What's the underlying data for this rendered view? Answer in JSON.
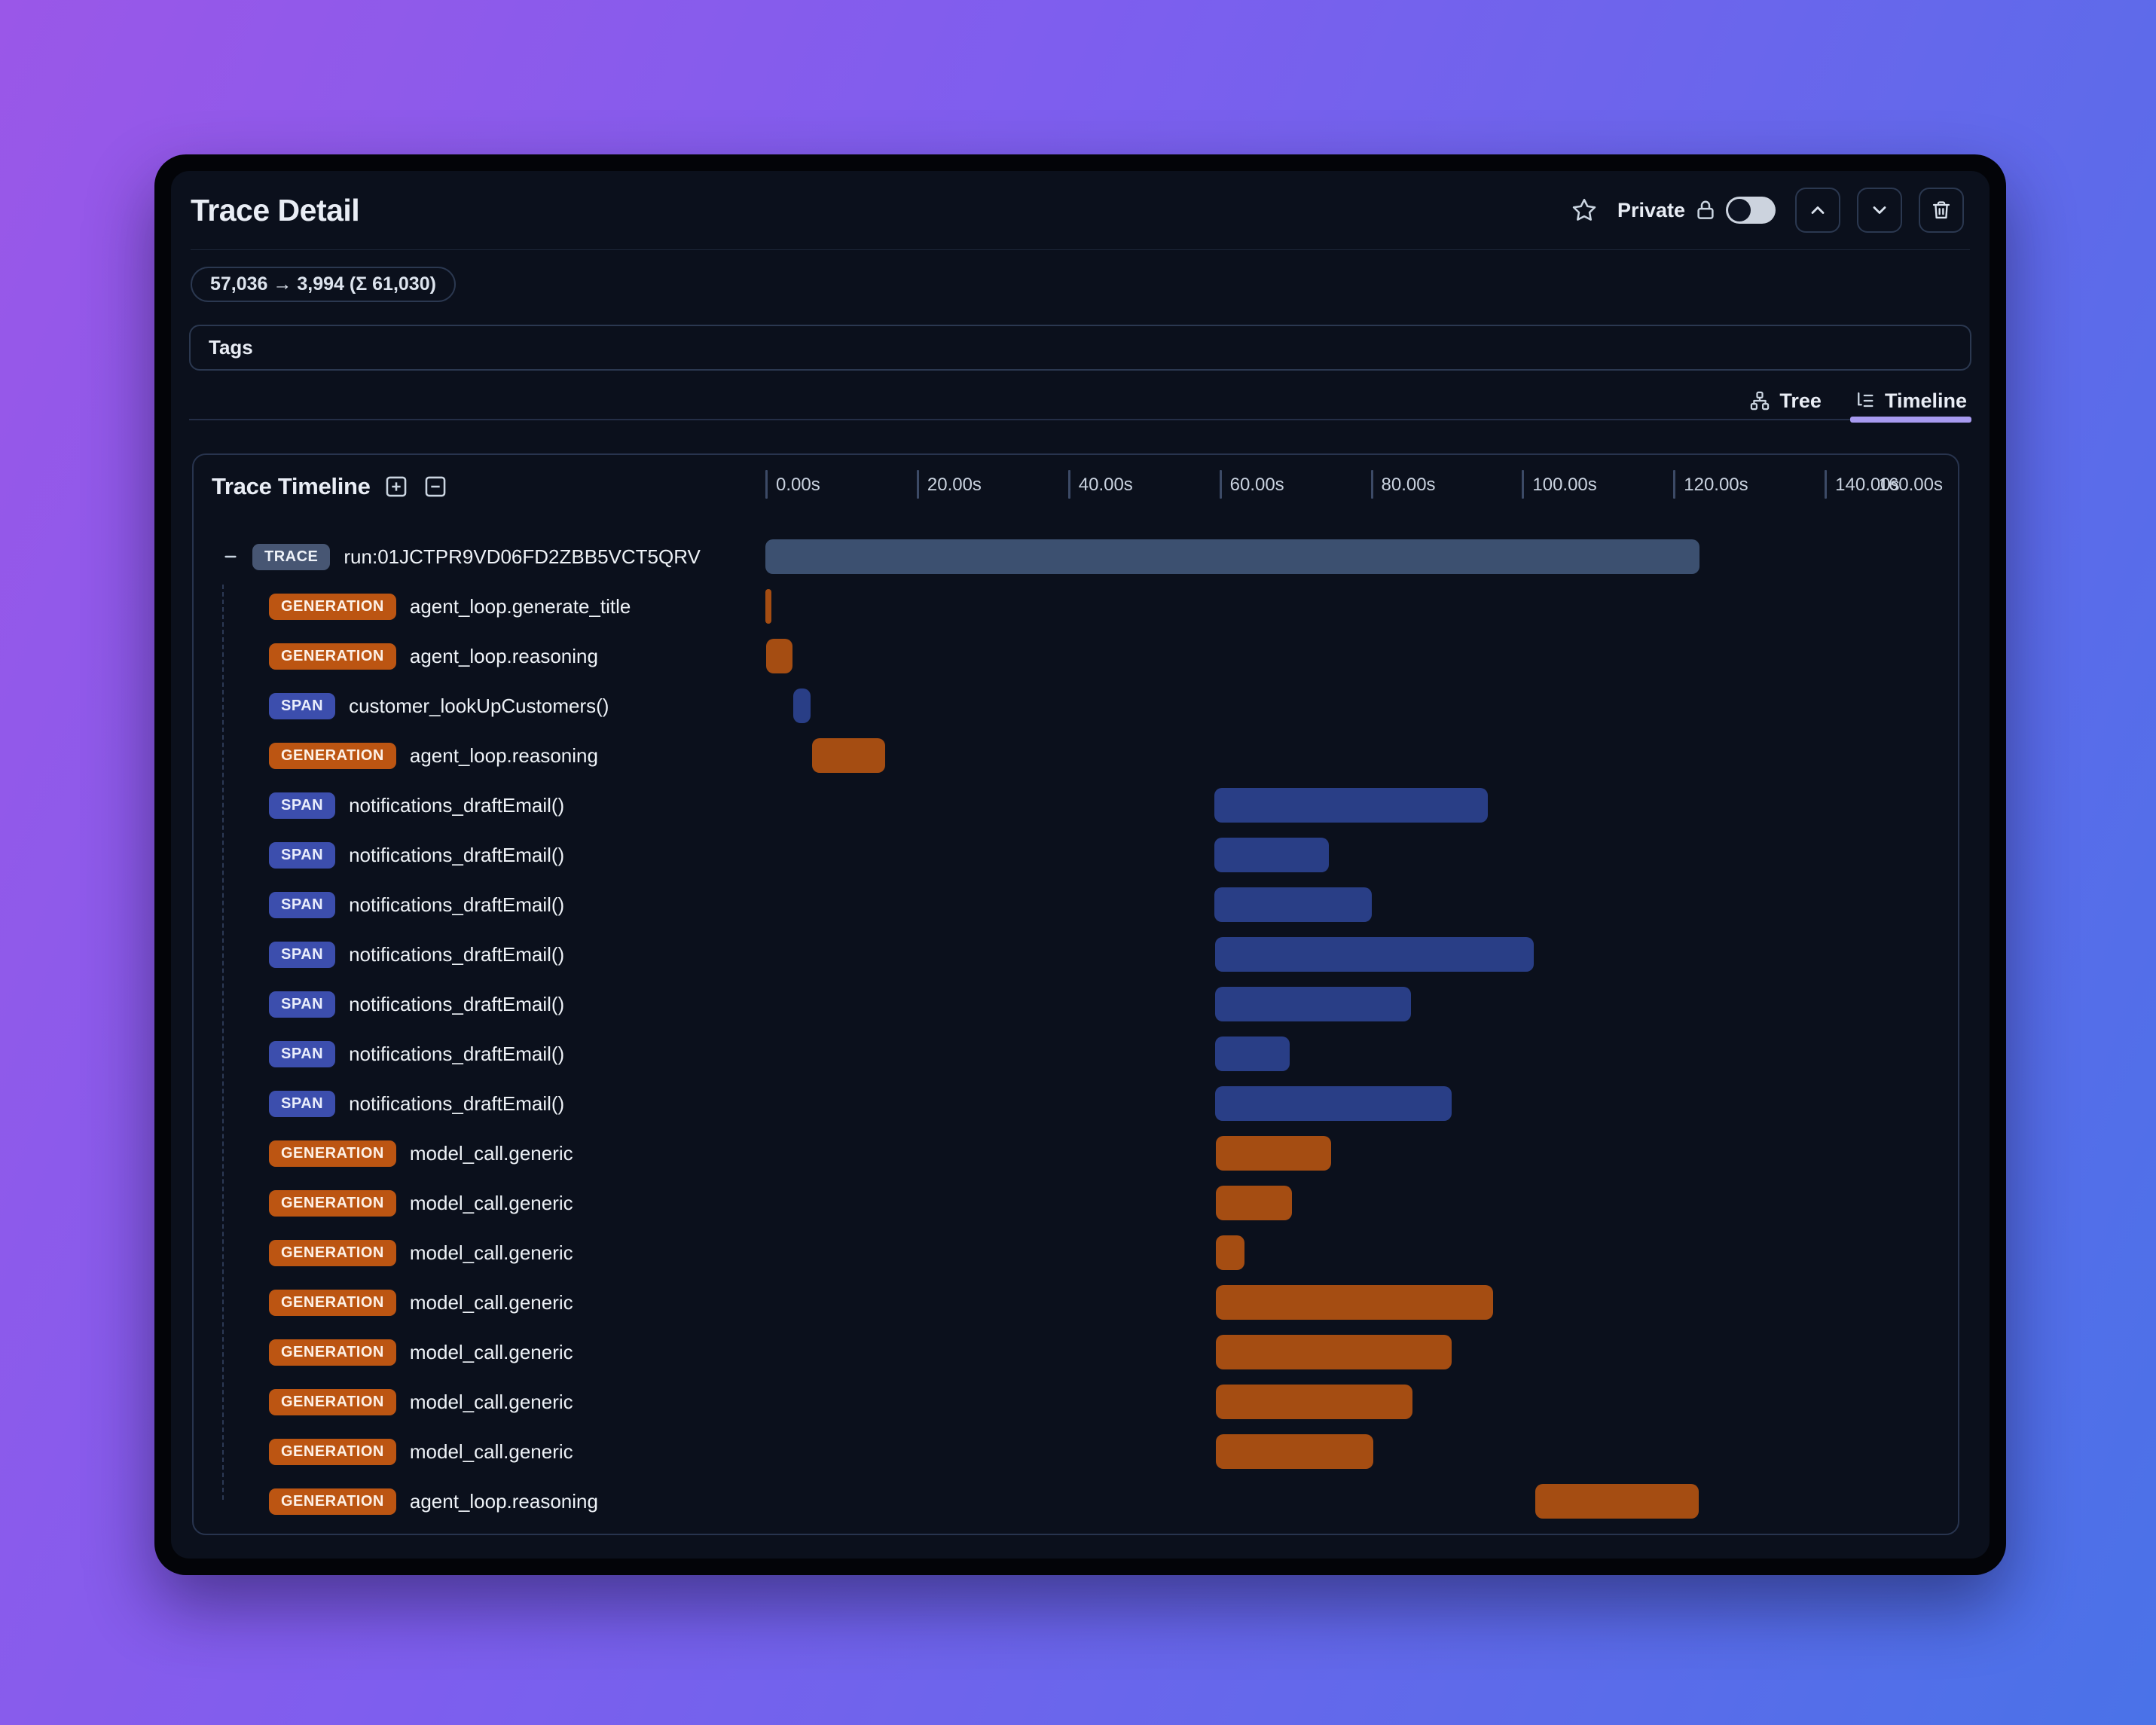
{
  "window": {
    "title": "Trace Detail",
    "usage_badge": "57,036 → 3,994 (Σ 61,030)",
    "tags_label": "Tags",
    "privacy_label": "Private",
    "header_icons": [
      "star-icon",
      "lock-icon",
      "toggle-switch",
      "chevron-up-icon",
      "chevron-down-icon",
      "trash-icon"
    ]
  },
  "tabs": [
    {
      "label": "Tree",
      "icon": "tree-hierarchy-icon",
      "active": false
    },
    {
      "label": "Timeline",
      "icon": "timeline-list-icon",
      "active": true
    }
  ],
  "timeline": {
    "panel_title": "Trace Timeline",
    "controls": [
      "expand-all-icon",
      "collapse-all-icon"
    ],
    "axis_ticks": [
      "0.00s",
      "20.00s",
      "40.00s",
      "60.00s",
      "80.00s",
      "100.00s",
      "120.00s",
      "140.00s"
    ],
    "axis_end_label": "160.00s",
    "axis_max_s": 160
  },
  "colors": {
    "background_gradient": [
      "#9a57e8",
      "#4a72e8"
    ],
    "window_frame": "#030408",
    "content_bg": "#0b101c",
    "border": "#2b3850",
    "active_tab_underline": "#a79af0",
    "trace_badge": "#475673",
    "trace_bar": "#3c5070",
    "generation_badge": "#bc5512",
    "generation_bar": "#a54d12",
    "span_badge": "#3c4ead",
    "span_bar": "#293e86"
  },
  "rows": [
    {
      "type": "TRACE",
      "label": "run:01JCTPR9VD06FD2ZBB5VCT5QRV",
      "variant": "trace",
      "root": true,
      "start_s": 0.0,
      "end_s": 123.5
    },
    {
      "type": "GENERATION",
      "label": "agent_loop.generate_title",
      "variant": "generation",
      "root": false,
      "start_s": 0.0,
      "end_s": 0.8
    },
    {
      "type": "GENERATION",
      "label": "agent_loop.reasoning",
      "variant": "generation",
      "root": false,
      "start_s": 0.1,
      "end_s": 3.6
    },
    {
      "type": "SPAN",
      "label": "customer_lookUpCustomers()",
      "variant": "span",
      "root": false,
      "start_s": 3.7,
      "end_s": 6.0
    },
    {
      "type": "GENERATION",
      "label": "agent_loop.reasoning",
      "variant": "generation",
      "root": false,
      "start_s": 6.2,
      "end_s": 15.8
    },
    {
      "type": "SPAN",
      "label": "notifications_draftEmail()",
      "variant": "span",
      "root": false,
      "start_s": 59.3,
      "end_s": 95.5
    },
    {
      "type": "SPAN",
      "label": "notifications_draftEmail()",
      "variant": "span",
      "root": false,
      "start_s": 59.3,
      "end_s": 74.5
    },
    {
      "type": "SPAN",
      "label": "notifications_draftEmail()",
      "variant": "span",
      "root": false,
      "start_s": 59.3,
      "end_s": 80.1
    },
    {
      "type": "SPAN",
      "label": "notifications_draftEmail()",
      "variant": "span",
      "root": false,
      "start_s": 59.4,
      "end_s": 101.6
    },
    {
      "type": "SPAN",
      "label": "notifications_draftEmail()",
      "variant": "span",
      "root": false,
      "start_s": 59.4,
      "end_s": 85.3
    },
    {
      "type": "SPAN",
      "label": "notifications_draftEmail()",
      "variant": "span",
      "root": false,
      "start_s": 59.4,
      "end_s": 69.3
    },
    {
      "type": "SPAN",
      "label": "notifications_draftEmail()",
      "variant": "span",
      "root": false,
      "start_s": 59.4,
      "end_s": 90.7
    },
    {
      "type": "GENERATION",
      "label": "model_call.generic",
      "variant": "generation",
      "root": false,
      "start_s": 59.5,
      "end_s": 74.8
    },
    {
      "type": "GENERATION",
      "label": "model_call.generic",
      "variant": "generation",
      "root": false,
      "start_s": 59.5,
      "end_s": 69.6
    },
    {
      "type": "GENERATION",
      "label": "model_call.generic",
      "variant": "generation",
      "root": false,
      "start_s": 59.5,
      "end_s": 63.3
    },
    {
      "type": "GENERATION",
      "label": "model_call.generic",
      "variant": "generation",
      "root": false,
      "start_s": 59.5,
      "end_s": 96.2
    },
    {
      "type": "GENERATION",
      "label": "model_call.generic",
      "variant": "generation",
      "root": false,
      "start_s": 59.5,
      "end_s": 90.7
    },
    {
      "type": "GENERATION",
      "label": "model_call.generic",
      "variant": "generation",
      "root": false,
      "start_s": 59.5,
      "end_s": 85.5
    },
    {
      "type": "GENERATION",
      "label": "model_call.generic",
      "variant": "generation",
      "root": false,
      "start_s": 59.5,
      "end_s": 80.3
    },
    {
      "type": "GENERATION",
      "label": "agent_loop.reasoning",
      "variant": "generation",
      "root": false,
      "start_s": 101.8,
      "end_s": 123.4
    }
  ]
}
